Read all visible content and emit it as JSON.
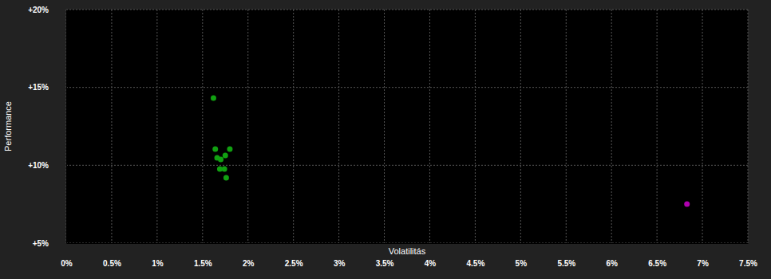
{
  "chart_data": {
    "type": "scatter",
    "x_label": "Volatilitás",
    "y_label": "Performance",
    "x": [
      1.62,
      1.64,
      1.8,
      1.66,
      1.75,
      1.7,
      1.69,
      1.74,
      1.76,
      6.83
    ],
    "values": [
      14.32,
      11.04,
      11.04,
      10.48,
      10.63,
      10.37,
      9.76,
      9.76,
      9.2,
      7.51
    ],
    "colors": [
      "#11a011",
      "#11a011",
      "#11a011",
      "#11a011",
      "#11a011",
      "#11a011",
      "#11a011",
      "#11a011",
      "#11a011",
      "#b000b0"
    ],
    "marker": "circle",
    "xlim": [
      0,
      7.5
    ],
    "xticks": [
      {
        "value": 0,
        "label": "0%"
      },
      {
        "value": 0.5,
        "label": "0.5%"
      },
      {
        "value": 1,
        "label": "1%"
      },
      {
        "value": 1.5,
        "label": "1.5%"
      },
      {
        "value": 2,
        "label": "2%"
      },
      {
        "value": 2.5,
        "label": "2.5%"
      },
      {
        "value": 3,
        "label": "3%"
      },
      {
        "value": 3.5,
        "label": "3.5%"
      },
      {
        "value": 4,
        "label": "4%"
      },
      {
        "value": 4.5,
        "label": "4.5%"
      },
      {
        "value": 5,
        "label": "5%"
      },
      {
        "value": 5.5,
        "label": "5.5%"
      },
      {
        "value": 6,
        "label": "6%"
      },
      {
        "value": 6.5,
        "label": "6.5%"
      },
      {
        "value": 7,
        "label": "7%"
      },
      {
        "value": 7.5,
        "label": "7.5%"
      }
    ],
    "ylim": [
      5,
      20
    ],
    "yticks": [
      {
        "value": 5,
        "label": "+5%"
      },
      {
        "value": 10,
        "label": "+10%"
      },
      {
        "value": 15,
        "label": "+15%"
      },
      {
        "value": 20,
        "label": "+20%"
      }
    ],
    "grid": true
  }
}
